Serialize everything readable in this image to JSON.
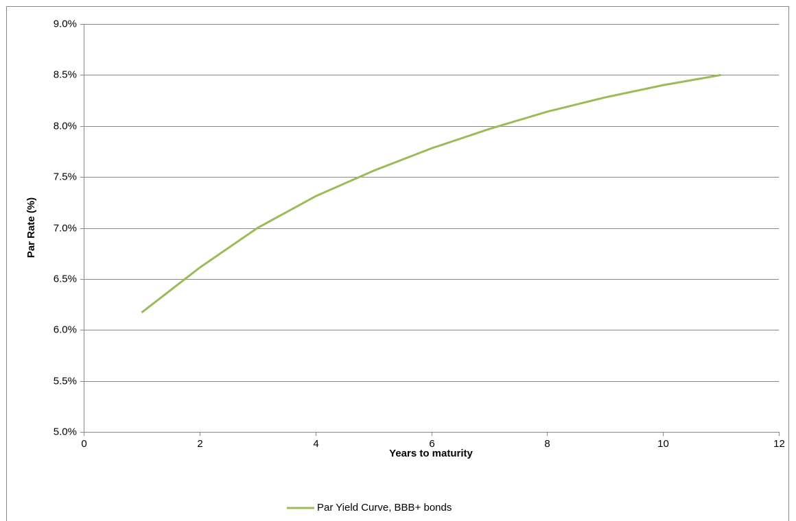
{
  "chart_data": {
    "type": "line",
    "x_label": "Years to maturity",
    "y_label": "Par Rate (%)",
    "x": [
      1,
      2,
      3,
      4,
      5,
      6,
      7,
      8,
      9,
      10,
      11
    ],
    "series": [
      {
        "name": "Par Yield Curve, BBB+ bonds",
        "color": "#9bbb59",
        "values": [
          6.17,
          6.61,
          7.0,
          7.31,
          7.56,
          7.78,
          7.97,
          8.14,
          8.28,
          8.4,
          8.5
        ]
      }
    ],
    "xlim": [
      0,
      12
    ],
    "xticks": [
      0,
      2,
      4,
      6,
      8,
      10,
      12
    ],
    "ylim": [
      5,
      9
    ],
    "yticks": [
      {
        "value": 5,
        "label": "5.0%"
      },
      {
        "value": 5.5,
        "label": "5.5%"
      },
      {
        "value": 6,
        "label": "6.0%"
      },
      {
        "value": 6.5,
        "label": "6.5%"
      },
      {
        "value": 7,
        "label": "7.0%"
      },
      {
        "value": 7.5,
        "label": "7.5%"
      },
      {
        "value": 8,
        "label": "8.0%"
      },
      {
        "value": 8.5,
        "label": "8.5%"
      },
      {
        "value": 9,
        "label": "9.0%"
      }
    ],
    "grid": true,
    "legend": "bottom"
  }
}
